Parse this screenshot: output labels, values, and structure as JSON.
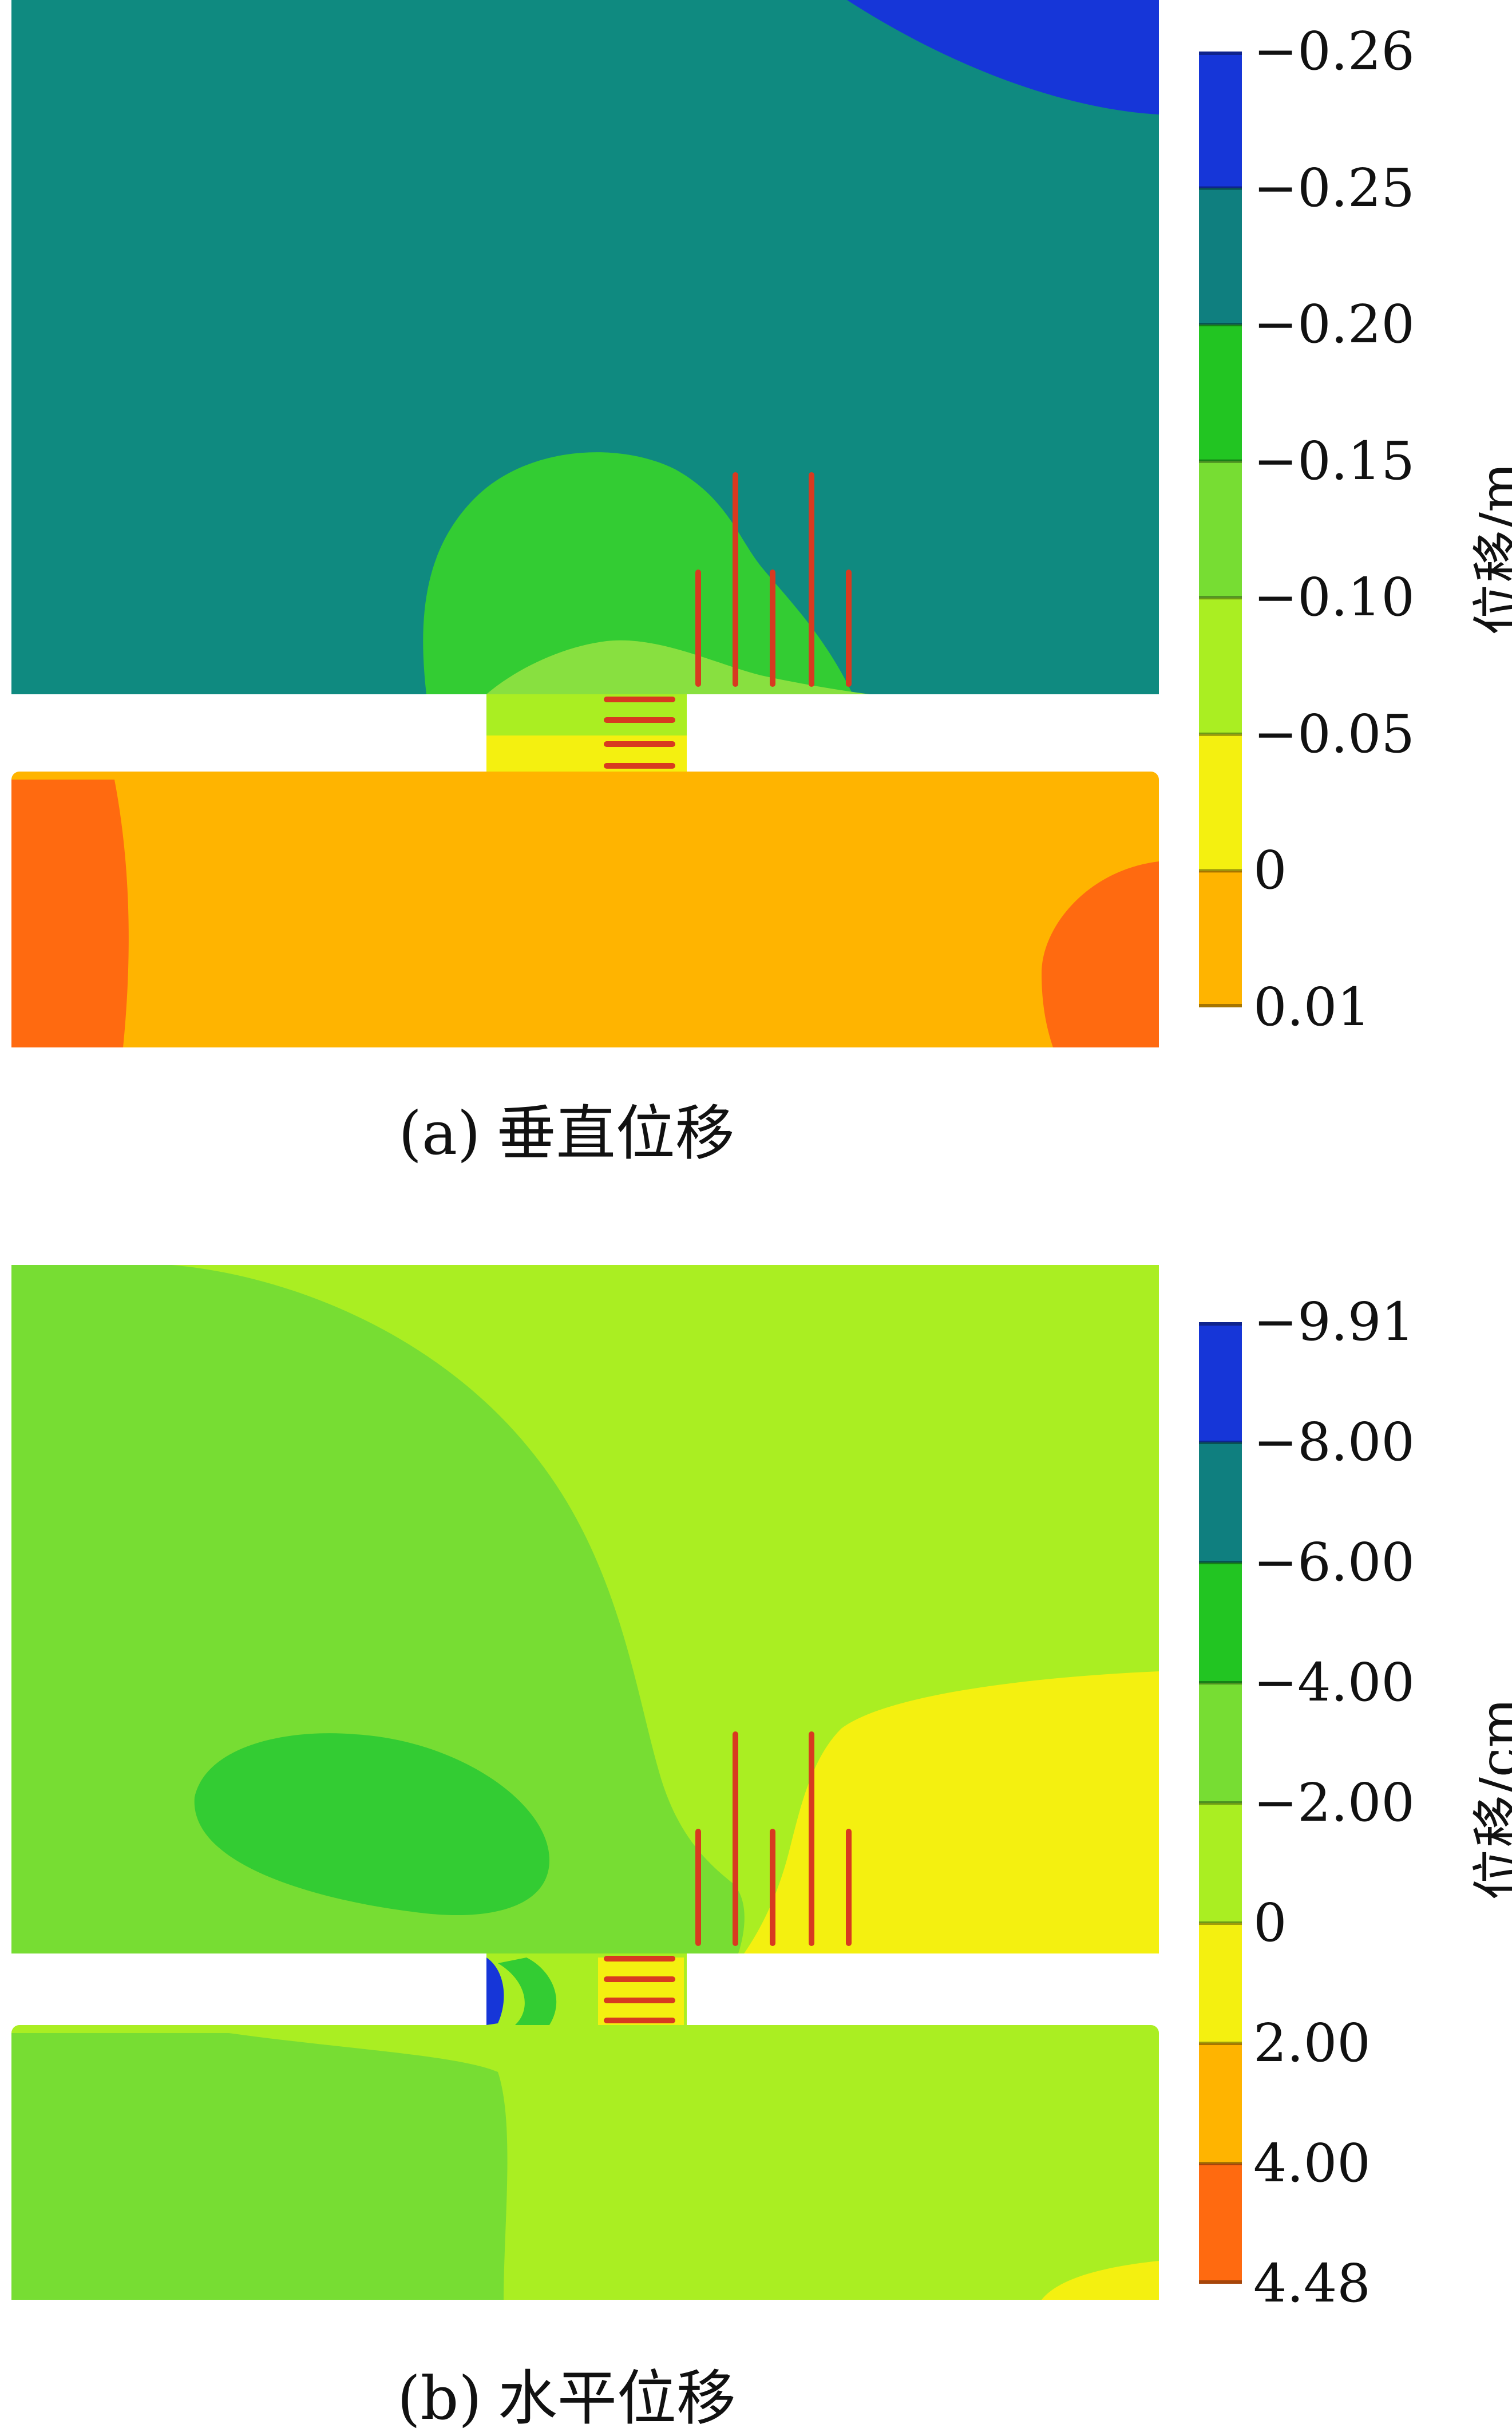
{
  "panels": [
    {
      "id": "a",
      "caption_label": "(a)",
      "caption_title": "垂直位移",
      "unit": "位移/m",
      "colorbar": {
        "ticks": [
          "−0.26",
          "−0.25",
          "−0.20",
          "−0.15",
          "−0.10",
          "−0.05",
          "0",
          "0.01"
        ],
        "bands": [
          "#1636d8",
          "#0f7f7f",
          "#22c522",
          "#77dd33",
          "#aaee22",
          "#f4f010",
          "#ffb400",
          "#ff6a10"
        ]
      }
    },
    {
      "id": "b",
      "caption_label": "(b)",
      "caption_title": "水平位移",
      "unit": "位移/cm",
      "colorbar": {
        "ticks": [
          "−9.91",
          "−8.00",
          "−6.00",
          "−4.00",
          "−2.00",
          "0",
          "2.00",
          "4.00",
          "4.48"
        ],
        "bands": [
          "#1636d8",
          "#0f7f7f",
          "#22c522",
          "#77dd33",
          "#aaee22",
          "#f4f010",
          "#ffb400",
          "#ff6a10"
        ]
      }
    }
  ],
  "colors": {
    "teal": "#0f8a80",
    "blue": "#1636d8",
    "green": "#33cc33",
    "light_green": "#88e040",
    "lime": "#aaee22",
    "yellow": "#f4f010",
    "orange": "#ffb400",
    "red_orange": "#ff6a10",
    "bolt_red": "#d83a20"
  }
}
